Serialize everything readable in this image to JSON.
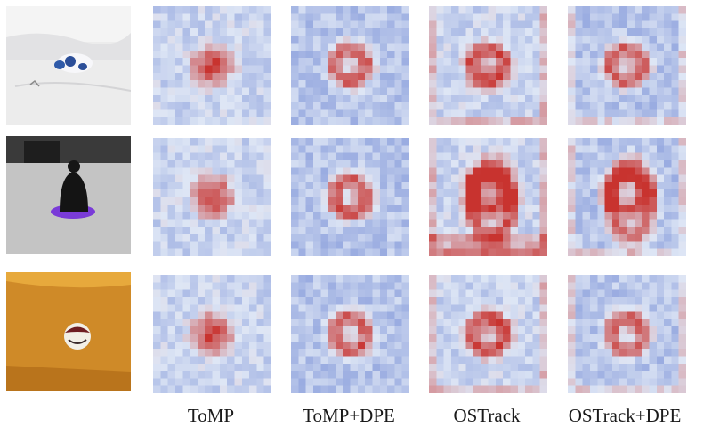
{
  "figure": {
    "columns": [
      {
        "key": "tomp",
        "label": "ToMP"
      },
      {
        "key": "tomp_dpe",
        "label": "ToMP+DPE"
      },
      {
        "key": "ostrack",
        "label": "OSTrack"
      },
      {
        "key": "ostrack_dpe",
        "label": "OSTrack+DPE"
      }
    ],
    "rows": [
      {
        "key": "row1",
        "photo": "cow-toy-on-snow"
      },
      {
        "key": "row2",
        "photo": "person-on-purple-sled"
      },
      {
        "key": "row3",
        "photo": "ball-on-orange-floor"
      }
    ],
    "colormap": {
      "low": "#3b5bc4",
      "mid": "#d9e2f3",
      "high": "#c8332f"
    }
  }
}
